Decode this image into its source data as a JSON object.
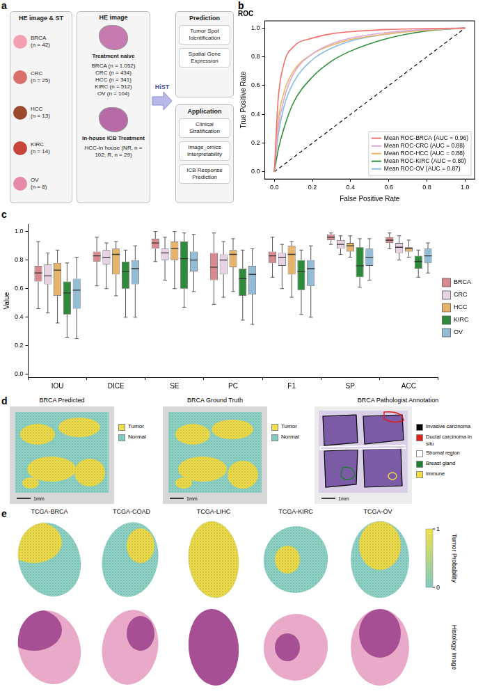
{
  "panel_a": {
    "letter": "a",
    "inputs": {
      "title": "HE image & ST",
      "items": [
        "BRCA (n = 42)",
        "CRC (n = 25)",
        "HCC (n = 13)",
        "KIRC (n = 14)",
        "OV (n = 8)"
      ]
    },
    "he_image": {
      "title": "HE image",
      "groups": [
        {
          "title": "Treatment naive",
          "items": [
            "BRCA (n = 1.052)",
            "CRC (n = 434)",
            "HCC (n = 341)",
            "KIRC (n = 512)",
            "OV (n = 104)"
          ]
        },
        {
          "title": "In-house ICB Treatment",
          "items": [
            "HCC-In house (NR, n = 102; R, n = 29)"
          ]
        }
      ]
    },
    "method": "HiST",
    "outputs": [
      {
        "title": "Prediction",
        "items": [
          "Tumor Spot Identification",
          "Spatial Gene Expression"
        ]
      },
      {
        "title": "Application",
        "items": [
          "Clinical Stratification",
          "Image_omics Interpretability",
          "ICB Response Prediction"
        ]
      }
    ]
  },
  "chart_data": [
    {
      "panel_label": "b",
      "type": "line",
      "title": "ROC",
      "x_label": "False Positive Rate",
      "y_label": "True Positive Rate",
      "xlim": [
        -0.05,
        1.05
      ],
      "ylim": [
        -0.05,
        1.05
      ],
      "xticks": [
        {
          "value": 0,
          "label": "0.0"
        },
        {
          "value": 0.2,
          "label": "0.2"
        },
        {
          "value": 0.4,
          "label": "0.4"
        },
        {
          "value": 0.6,
          "label": "0.6"
        },
        {
          "value": 0.8,
          "label": "0.8"
        },
        {
          "value": 1,
          "label": "1.0"
        }
      ],
      "yticks": [
        {
          "value": 0,
          "label": "0.0"
        },
        {
          "value": 0.2,
          "label": "0.2"
        },
        {
          "value": 0.4,
          "label": "0.4"
        },
        {
          "value": 0.6,
          "label": "0.6"
        },
        {
          "value": 0.8,
          "label": "0.8"
        },
        {
          "value": 1,
          "label": "1.0"
        }
      ],
      "grid": false,
      "legend": "lower right",
      "series": [
        {
          "name": "Mean ROC-BRCA (AUC = 0.96)",
          "color": "#f4716b",
          "x": [
            0,
            0.02,
            0.05,
            0.1,
            0.2,
            0.3,
            0.4,
            0.6,
            0.8,
            1
          ],
          "values": [
            0,
            0.5,
            0.75,
            0.87,
            0.93,
            0.96,
            0.975,
            0.99,
            0.997,
            1
          ]
        },
        {
          "name": "Mean ROC-CRC (AUC = 0.88)",
          "color": "#d9a9d6",
          "x": [
            0,
            0.02,
            0.05,
            0.1,
            0.2,
            0.3,
            0.4,
            0.6,
            0.8,
            1
          ],
          "values": [
            0,
            0.3,
            0.5,
            0.68,
            0.82,
            0.89,
            0.93,
            0.97,
            0.99,
            1
          ]
        },
        {
          "name": "Mean ROC-HCC (AUC = 0.88)",
          "color": "#f0b464",
          "x": [
            0,
            0.02,
            0.05,
            0.1,
            0.2,
            0.3,
            0.4,
            0.6,
            0.8,
            1
          ],
          "values": [
            0,
            0.35,
            0.55,
            0.7,
            0.82,
            0.88,
            0.92,
            0.96,
            0.985,
            1
          ]
        },
        {
          "name": "Mean ROC-KIRC (AUC = 0.80)",
          "color": "#2f8f3a",
          "x": [
            0,
            0.02,
            0.05,
            0.1,
            0.2,
            0.3,
            0.4,
            0.6,
            0.8,
            1
          ],
          "values": [
            0,
            0.15,
            0.3,
            0.48,
            0.66,
            0.77,
            0.84,
            0.93,
            0.98,
            1
          ]
        },
        {
          "name": "Mean ROC-OV (AUC = 0.87)",
          "color": "#86bde0",
          "x": [
            0,
            0.02,
            0.05,
            0.1,
            0.2,
            0.3,
            0.4,
            0.6,
            0.8,
            1
          ],
          "values": [
            0,
            0.25,
            0.45,
            0.62,
            0.78,
            0.86,
            0.91,
            0.96,
            0.99,
            1
          ]
        },
        {
          "color": "#000000",
          "line_style": "dashed",
          "x": [
            0,
            1
          ],
          "values": [
            0,
            1
          ]
        }
      ]
    },
    {
      "panel_label": "c",
      "type": "box",
      "y_label": "Value",
      "categories": [
        "IOU",
        "DICE",
        "SE",
        "PC",
        "F1",
        "SP",
        "ACC"
      ],
      "ylim": [
        -0.02,
        1.05
      ],
      "yticks": [
        {
          "value": 0,
          "label": "0.0"
        },
        {
          "value": 0.2,
          "label": "0.2"
        },
        {
          "value": 0.4,
          "label": "0.4"
        },
        {
          "value": 0.6,
          "label": "0.6"
        },
        {
          "value": 0.8,
          "label": "0.8"
        },
        {
          "value": 1,
          "label": "1.0"
        }
      ],
      "grid": false,
      "legend": "right",
      "series": [
        {
          "name": "BRCA",
          "color": "#d98a8f",
          "values": [
            {
              "min": 0.46,
              "q1": 0.65,
              "median": 0.71,
              "q3": 0.76,
              "max": 0.93
            },
            {
              "min": 0.62,
              "q1": 0.79,
              "median": 0.83,
              "q3": 0.86,
              "max": 0.96
            },
            {
              "min": 0.79,
              "q1": 0.88,
              "median": 0.92,
              "q3": 0.95,
              "max": 1.0
            },
            {
              "min": 0.49,
              "q1": 0.66,
              "median": 0.75,
              "q3": 0.85,
              "max": 0.99
            },
            {
              "min": 0.68,
              "q1": 0.78,
              "median": 0.83,
              "q3": 0.86,
              "max": 0.96
            },
            {
              "min": 0.91,
              "q1": 0.94,
              "median": 0.96,
              "q3": 0.98,
              "max": 0.99
            },
            {
              "min": 0.88,
              "q1": 0.92,
              "median": 0.94,
              "q3": 0.96,
              "max": 0.99
            }
          ]
        },
        {
          "name": "CRC",
          "color": "#e7d3e3",
          "values": [
            {
              "min": 0.43,
              "q1": 0.63,
              "median": 0.69,
              "q3": 0.77,
              "max": 0.85
            },
            {
              "min": 0.6,
              "q1": 0.77,
              "median": 0.82,
              "q3": 0.87,
              "max": 0.92
            },
            {
              "min": 0.66,
              "q1": 0.8,
              "median": 0.85,
              "q3": 0.88,
              "max": 0.96
            },
            {
              "min": 0.54,
              "q1": 0.7,
              "median": 0.8,
              "q3": 0.84,
              "max": 0.93
            },
            {
              "min": 0.6,
              "q1": 0.76,
              "median": 0.82,
              "q3": 0.85,
              "max": 0.91
            },
            {
              "min": 0.84,
              "q1": 0.88,
              "median": 0.91,
              "q3": 0.94,
              "max": 0.97
            },
            {
              "min": 0.8,
              "q1": 0.85,
              "median": 0.89,
              "q3": 0.92,
              "max": 0.97
            }
          ]
        },
        {
          "name": "HCC",
          "color": "#e6b36a",
          "values": [
            {
              "min": 0.36,
              "q1": 0.55,
              "median": 0.73,
              "q3": 0.78,
              "max": 0.87
            },
            {
              "min": 0.55,
              "q1": 0.7,
              "median": 0.84,
              "q3": 0.88,
              "max": 0.93
            },
            {
              "min": 0.6,
              "q1": 0.8,
              "median": 0.88,
              "q3": 0.93,
              "max": 1.0
            },
            {
              "min": 0.58,
              "q1": 0.75,
              "median": 0.84,
              "q3": 0.87,
              "max": 0.95
            },
            {
              "min": 0.54,
              "q1": 0.7,
              "median": 0.84,
              "q3": 0.9,
              "max": 0.93
            },
            {
              "min": 0.82,
              "q1": 0.86,
              "median": 0.9,
              "q3": 0.92,
              "max": 0.97
            },
            {
              "min": 0.82,
              "q1": 0.86,
              "median": 0.88,
              "q3": 0.89,
              "max": 0.94
            }
          ]
        },
        {
          "name": "KIRC",
          "color": "#2f8a3c",
          "values": [
            {
              "min": 0.26,
              "q1": 0.42,
              "median": 0.57,
              "q3": 0.65,
              "max": 0.78
            },
            {
              "min": 0.4,
              "q1": 0.6,
              "median": 0.72,
              "q3": 0.79,
              "max": 0.87
            },
            {
              "min": 0.47,
              "q1": 0.6,
              "median": 0.81,
              "q3": 0.93,
              "max": 0.99
            },
            {
              "min": 0.38,
              "q1": 0.55,
              "median": 0.67,
              "q3": 0.74,
              "max": 0.87
            },
            {
              "min": 0.42,
              "q1": 0.59,
              "median": 0.72,
              "q3": 0.8,
              "max": 0.87
            },
            {
              "min": 0.61,
              "q1": 0.68,
              "median": 0.76,
              "q3": 0.89,
              "max": 0.95
            },
            {
              "min": 0.68,
              "q1": 0.74,
              "median": 0.79,
              "q3": 0.83,
              "max": 0.87
            }
          ]
        },
        {
          "name": "OV",
          "color": "#93bcd6",
          "values": [
            {
              "min": 0.25,
              "q1": 0.46,
              "median": 0.59,
              "q3": 0.67,
              "max": 0.82
            },
            {
              "min": 0.4,
              "q1": 0.63,
              "median": 0.74,
              "q3": 0.8,
              "max": 0.9
            },
            {
              "min": 0.58,
              "q1": 0.72,
              "median": 0.8,
              "q3": 0.86,
              "max": 0.98
            },
            {
              "min": 0.35,
              "q1": 0.56,
              "median": 0.7,
              "q3": 0.76,
              "max": 0.88
            },
            {
              "min": 0.4,
              "q1": 0.62,
              "median": 0.74,
              "q3": 0.8,
              "max": 0.9
            },
            {
              "min": 0.66,
              "q1": 0.76,
              "median": 0.82,
              "q3": 0.88,
              "max": 0.95
            },
            {
              "min": 0.71,
              "q1": 0.78,
              "median": 0.83,
              "q3": 0.88,
              "max": 0.92
            }
          ]
        }
      ]
    }
  ],
  "panel_d": {
    "letter": "d",
    "maps": [
      {
        "title": "BRCA Predicted",
        "scale_bar": "1mm",
        "legend": [
          {
            "label": "Tumor",
            "color": "#f0e04a"
          },
          {
            "label": "Normal",
            "color": "#7fcbc0"
          }
        ]
      },
      {
        "title": "BRCA Ground Truth",
        "scale_bar": "1mm",
        "legend": [
          {
            "label": "Tumor",
            "color": "#f0e04a"
          },
          {
            "label": "Normal",
            "color": "#7fcbc0"
          }
        ]
      }
    ],
    "annotation": {
      "title": "BRCA Pathologist Annotation",
      "scale_bar": "1mm",
      "legend": [
        {
          "label": "Invasive carcinoma",
          "color": "#000000"
        },
        {
          "label": "Ductal carcinoma in situ",
          "color": "#e0201b"
        },
        {
          "label": "Stromal region",
          "color": "#ffffff"
        },
        {
          "label": "Breast gland",
          "color": "#1a7f2e"
        },
        {
          "label": "Immune",
          "color": "#f0e040"
        }
      ]
    }
  },
  "panel_e": {
    "letter": "e",
    "slides": [
      "TCGA-BRCA",
      "TCGA-COAD",
      "TCGA-LIHC",
      "TCGA-KIRC",
      "TCGA-OV"
    ],
    "colorbar": {
      "label": "Tumor Probability",
      "range": [
        0,
        1
      ],
      "ticks": [
        0,
        1
      ],
      "colors": [
        "#7fcbc0",
        "#f0e04a"
      ]
    },
    "row_label": "Histology Image"
  }
}
